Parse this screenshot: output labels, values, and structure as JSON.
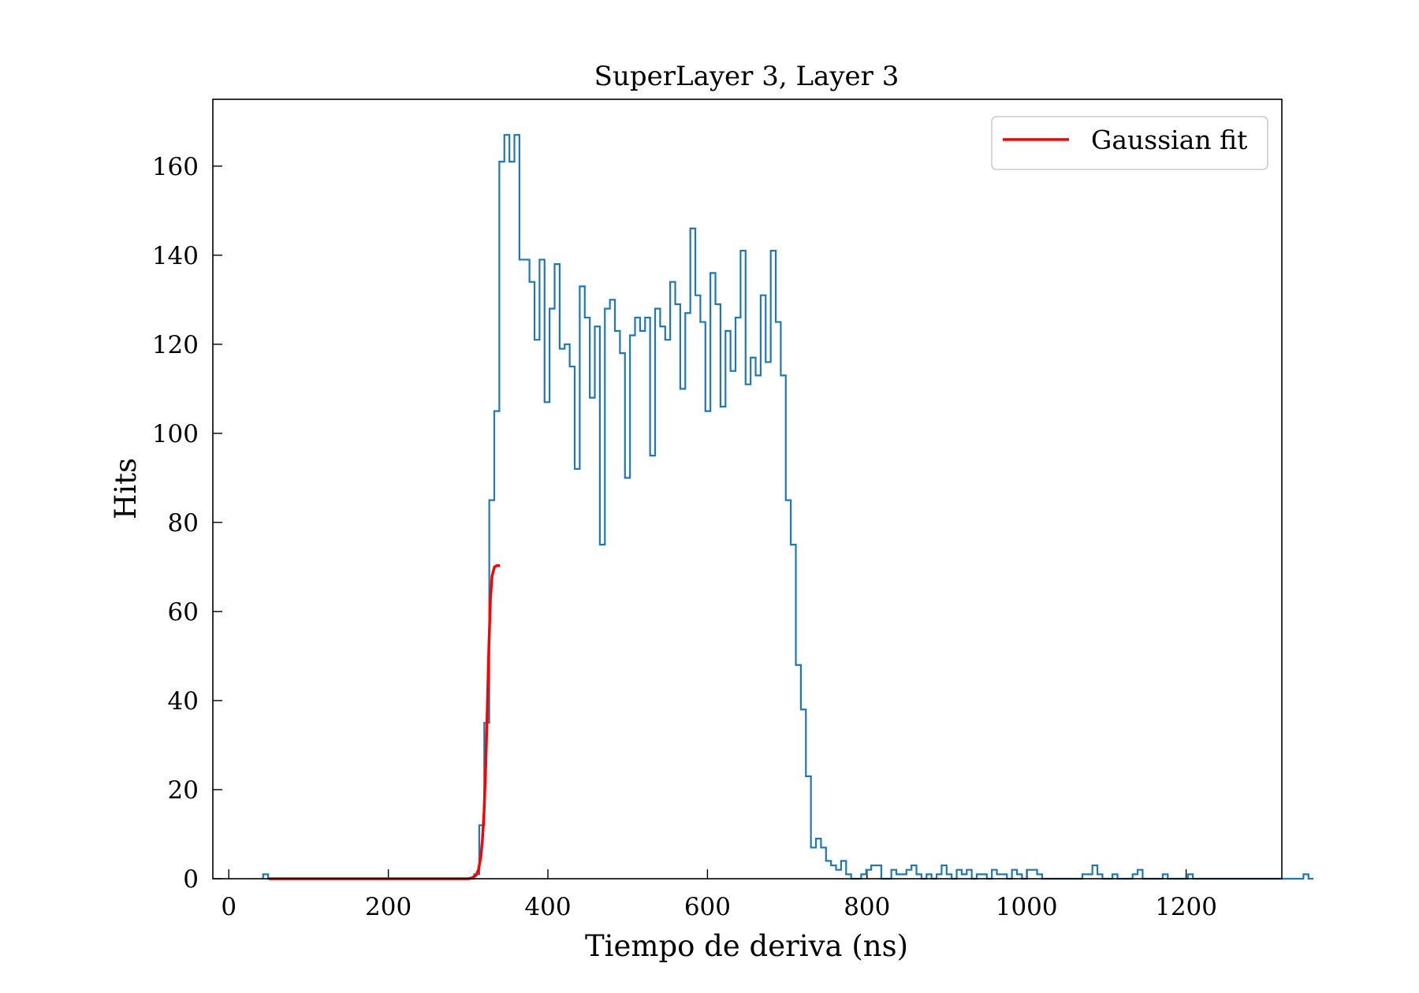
{
  "chart_data": {
    "type": "histogram",
    "title": "SuperLayer 3, Layer 3",
    "xlabel": "Tiempo de deriva (ns)",
    "ylabel": "Hits",
    "xlim": [
      -20,
      1320
    ],
    "ylim": [
      0,
      175
    ],
    "xticks": [
      0,
      200,
      400,
      600,
      800,
      1000,
      1200
    ],
    "yticks": [
      0,
      20,
      40,
      60,
      80,
      100,
      120,
      140,
      160
    ],
    "grid": false,
    "legend": {
      "position": "top-right",
      "entries": [
        "Gaussian fit"
      ]
    },
    "colors": {
      "histogram": "#1f77b4",
      "fit": "#ff0000",
      "axes": "#000000"
    },
    "series": [
      {
        "name": "",
        "kind": "step-histogram",
        "bin_start": 43,
        "bin_width": 6.3,
        "counts": [
          1,
          0,
          0,
          0,
          0,
          0,
          0,
          0,
          0,
          0,
          0,
          0,
          0,
          0,
          0,
          0,
          0,
          0,
          0,
          0,
          0,
          0,
          0,
          0,
          0,
          0,
          0,
          0,
          0,
          0,
          0,
          0,
          0,
          0,
          0,
          0,
          0,
          0,
          0,
          0,
          0,
          0,
          1,
          12,
          35,
          85,
          105,
          161,
          167,
          161,
          167,
          139,
          139,
          134,
          121,
          139,
          107,
          128,
          138,
          119,
          120,
          115,
          92,
          133,
          126,
          108,
          124,
          75,
          128,
          130,
          123,
          118,
          90,
          122,
          126,
          123,
          126,
          95,
          128,
          124,
          121,
          134,
          129,
          110,
          127,
          146,
          131,
          125,
          105,
          136,
          129,
          106,
          123,
          114,
          126,
          141,
          111,
          117,
          113,
          131,
          116,
          141,
          125,
          113,
          85,
          75,
          48,
          38,
          23,
          7,
          9,
          7,
          4,
          3,
          2,
          4,
          1,
          0,
          0,
          1,
          2,
          3,
          3,
          0,
          0,
          2,
          1,
          1,
          2,
          3,
          1,
          0,
          1,
          0,
          1,
          3,
          1,
          0,
          2,
          1,
          2,
          0,
          1,
          1,
          0,
          2,
          1,
          1,
          0,
          2,
          1,
          0,
          2,
          2,
          1,
          0,
          0,
          0,
          0,
          0,
          0,
          0,
          0,
          1,
          1,
          3,
          1,
          0,
          0,
          1,
          0,
          0,
          0,
          1,
          2,
          0,
          0,
          0,
          0,
          1,
          0,
          0,
          0,
          0,
          1,
          0,
          0,
          0,
          0,
          0,
          0,
          0,
          0,
          0,
          0,
          0,
          0,
          0,
          0,
          0,
          0,
          0,
          0,
          0,
          0,
          0,
          0,
          1,
          0
        ]
      },
      {
        "name": "Gaussian fit",
        "kind": "line",
        "x": [
          50,
          100,
          150,
          200,
          250,
          300,
          305,
          310,
          313,
          316,
          318,
          320,
          322,
          324,
          326,
          328,
          330,
          333,
          336,
          340
        ],
        "y": [
          0,
          0,
          0,
          0,
          0,
          0,
          0.2,
          0.8,
          2,
          5,
          9,
          15,
          25,
          38,
          52,
          63,
          68,
          70,
          70.3,
          70.3
        ]
      }
    ]
  }
}
